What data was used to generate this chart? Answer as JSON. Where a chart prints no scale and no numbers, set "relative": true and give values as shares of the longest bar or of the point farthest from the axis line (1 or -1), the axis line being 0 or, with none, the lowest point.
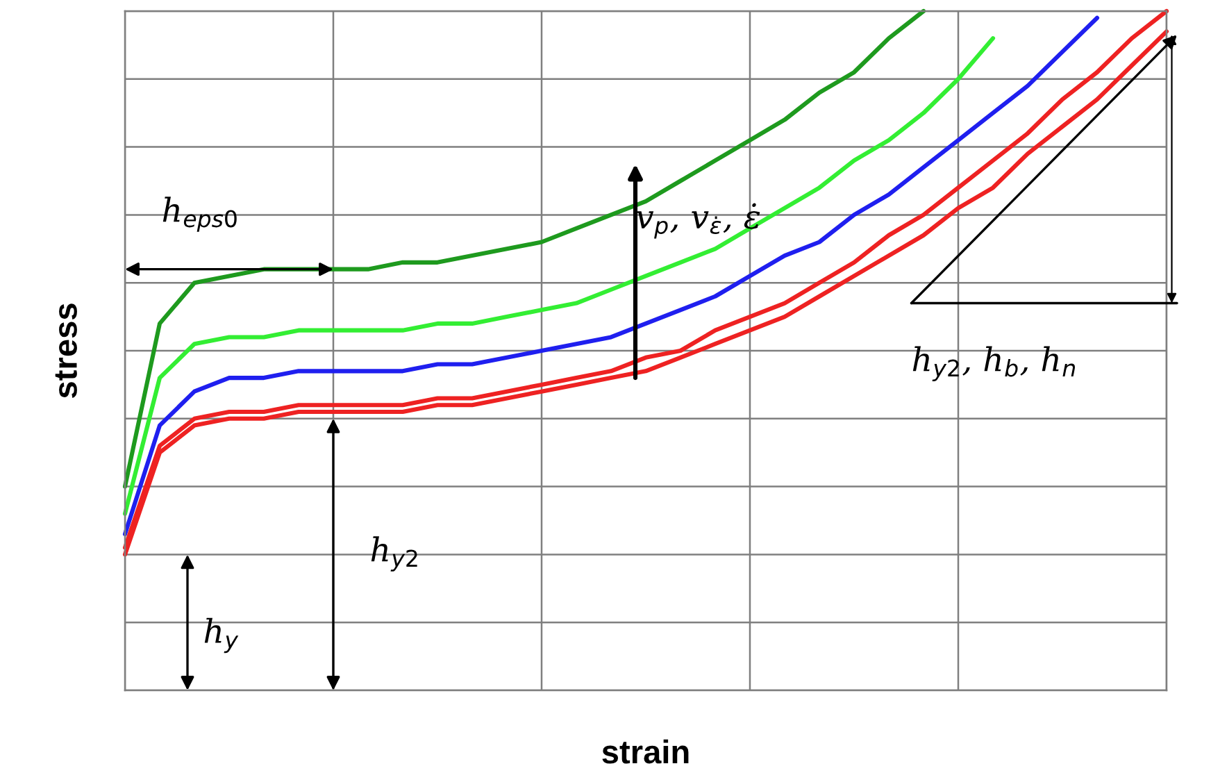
{
  "chart_data": {
    "type": "line",
    "relative": true,
    "xlabel": "strain",
    "ylabel": "stress",
    "grid": true,
    "categories": [
      null,
      null,
      null,
      null,
      null,
      null,
      null,
      null,
      null,
      null,
      null,
      null,
      null,
      null,
      null,
      null,
      null,
      null,
      null,
      null,
      null,
      null,
      null,
      null,
      null,
      null,
      null,
      null,
      null,
      null,
      null
    ],
    "series": [
      {
        "color": "#1e9a1e",
        "values": [
          0.3,
          0.54,
          0.6,
          0.61,
          0.62,
          0.62,
          0.62,
          0.62,
          0.63,
          0.63,
          0.64,
          0.65,
          0.66,
          0.68,
          0.7,
          0.72,
          0.75,
          0.78,
          0.81,
          0.84,
          0.88,
          0.91,
          0.96,
          1.0,
          null,
          null,
          null,
          null,
          null,
          null,
          null
        ]
      },
      {
        "color": "#33ee33",
        "values": [
          0.26,
          0.46,
          0.51,
          0.52,
          0.52,
          0.53,
          0.53,
          0.53,
          0.53,
          0.54,
          0.54,
          0.55,
          0.56,
          0.57,
          0.59,
          0.61,
          0.63,
          0.65,
          0.68,
          0.71,
          0.74,
          0.78,
          0.81,
          0.85,
          0.9,
          0.96,
          null,
          null,
          null,
          null,
          null
        ]
      },
      {
        "color": "#1f1fef",
        "values": [
          0.23,
          0.39,
          0.44,
          0.46,
          0.46,
          0.47,
          0.47,
          0.47,
          0.47,
          0.48,
          0.48,
          0.49,
          0.5,
          0.51,
          0.52,
          0.54,
          0.56,
          0.58,
          0.61,
          0.64,
          0.66,
          0.7,
          0.73,
          0.77,
          0.81,
          0.85,
          0.89,
          0.94,
          0.99,
          null,
          null
        ]
      },
      {
        "color": "#ee2222",
        "values": [
          0.21,
          0.36,
          0.4,
          0.41,
          0.41,
          0.42,
          0.42,
          0.42,
          0.42,
          0.43,
          0.43,
          0.44,
          0.45,
          0.46,
          0.47,
          0.49,
          0.5,
          0.53,
          0.55,
          0.57,
          0.6,
          0.63,
          0.67,
          0.7,
          0.74,
          0.78,
          0.82,
          0.87,
          0.91,
          0.96,
          1.0
        ]
      },
      {
        "color": "#ee2222",
        "values": [
          0.2,
          0.35,
          0.39,
          0.4,
          0.4,
          0.41,
          0.41,
          0.41,
          0.41,
          0.42,
          0.42,
          0.43,
          0.44,
          0.45,
          0.46,
          0.47,
          0.49,
          0.51,
          0.53,
          0.55,
          0.58,
          0.61,
          0.64,
          0.67,
          0.71,
          0.74,
          0.79,
          0.83,
          0.87,
          0.92,
          0.97
        ]
      }
    ],
    "annotations": [
      "h$_{eps0}$",
      "h$_{y2}$",
      "h$_{y}$",
      "v$_{p}$, v$_{ε̇}$, ε̇",
      "h$_{y2}$, h$_{b}$, h$_{n}$"
    ]
  }
}
